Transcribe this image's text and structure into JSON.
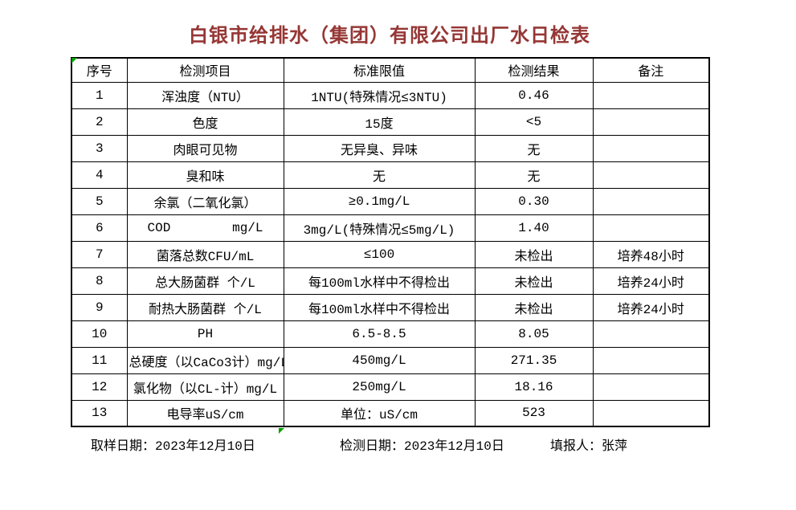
{
  "title": "白银市给排水（集团）有限公司出厂水日检表",
  "colors": {
    "title_text": "#953735",
    "table_border": "#000000",
    "corner_marker": "#00A000",
    "background": "#ffffff"
  },
  "table": {
    "headers": [
      "序号",
      "检测项目",
      "标准限值",
      "检测结果",
      "备注"
    ],
    "rows": [
      {
        "no": "1",
        "item": "浑浊度（NTU）",
        "limit": "1NTU(特殊情况≤3NTU)",
        "result": "0.46",
        "remark": ""
      },
      {
        "no": "2",
        "item": "色度",
        "limit": "15度",
        "result": "<5",
        "remark": ""
      },
      {
        "no": "3",
        "item": "肉眼可见物",
        "limit": "无异臭、异味",
        "result": "无",
        "remark": ""
      },
      {
        "no": "4",
        "item": "臭和味",
        "limit": "无",
        "result": "无",
        "remark": ""
      },
      {
        "no": "5",
        "item": "余氯（二氧化氯）",
        "limit": "≥0.1mg/L",
        "result": "0.30",
        "remark": ""
      },
      {
        "no": "6",
        "item": "COD        mg/L",
        "limit": "3mg/L(特殊情况≤5mg/L)",
        "result": "1.40",
        "remark": ""
      },
      {
        "no": "7",
        "item": "菌落总数CFU/mL",
        "limit": "≤100",
        "result": "未检出",
        "remark": "培养48小时"
      },
      {
        "no": "8",
        "item": "总大肠菌群 个/L",
        "limit": "每100ml水样中不得检出",
        "result": "未检出",
        "remark": "培养24小时"
      },
      {
        "no": "9",
        "item": "耐热大肠菌群 个/L",
        "limit": "每100ml水样中不得检出",
        "result": "未检出",
        "remark": "培养24小时"
      },
      {
        "no": "10",
        "item": "PH",
        "limit": "6.5-8.5",
        "result": "8.05",
        "remark": ""
      },
      {
        "no": "11",
        "item": "总硬度（以CaCo3计）mg/L",
        "limit": "450mg/L",
        "result": "271.35",
        "remark": ""
      },
      {
        "no": "12",
        "item": "氯化物（以CL-计）mg/L",
        "limit": "250mg/L",
        "result": "18.16",
        "remark": ""
      },
      {
        "no": "13",
        "item": "电导率uS/cm",
        "limit": "单位：uS/cm",
        "result": "523",
        "remark": ""
      }
    ]
  },
  "footer": {
    "sampling_date": "取样日期：2023年12月10日",
    "test_date": "检测日期：2023年12月10日",
    "reporter": "填报人：张萍"
  }
}
